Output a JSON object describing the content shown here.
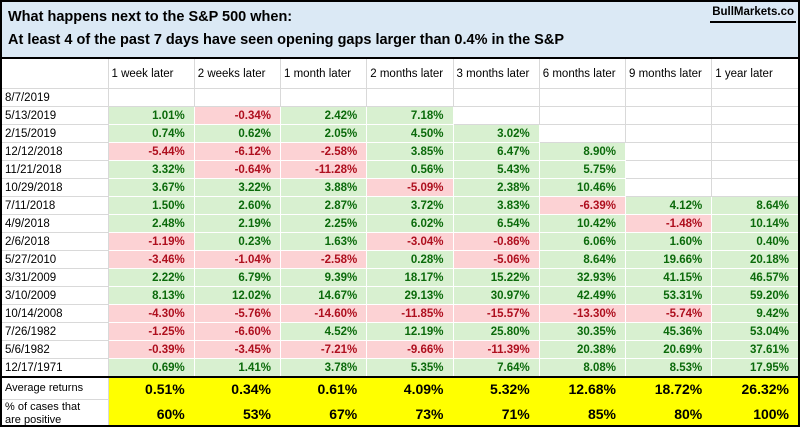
{
  "header": {
    "title_line1": "What happens next to the S&P 500 when:",
    "title_line2": "At least 4 of the past 7 days have seen opening gaps larger than 0.4% in the S&P",
    "brand": "BullMarkets.co"
  },
  "colors": {
    "title_bg": "#dbe9f5",
    "positive_bg": "#d8f0d0",
    "positive_text": "#0b6a0b",
    "negative_bg": "#fcd2d4",
    "negative_text": "#ae0f1e",
    "summary_bg": "#ffff00",
    "gridline": "#d9d9d9"
  },
  "chart_data": {
    "type": "table",
    "title": "What happens next to the S&P 500 when: At least 4 of the past 7 days have seen opening gaps larger than 0.4% in the S&P",
    "columns": [
      "1 week later",
      "2 weeks later",
      "1 month later",
      "2 months later",
      "3 months later",
      "6 months later",
      "9 months later",
      "1 year later"
    ],
    "rows": [
      {
        "date": "8/7/2019",
        "values": [
          null,
          null,
          null,
          null,
          null,
          null,
          null,
          null
        ]
      },
      {
        "date": "5/13/2019",
        "values": [
          "1.01%",
          "-0.34%",
          "2.42%",
          "7.18%",
          null,
          null,
          null,
          null
        ]
      },
      {
        "date": "2/15/2019",
        "values": [
          "0.74%",
          "0.62%",
          "2.05%",
          "4.50%",
          "3.02%",
          null,
          null,
          null
        ]
      },
      {
        "date": "12/12/2018",
        "values": [
          "-5.44%",
          "-6.12%",
          "-2.58%",
          "3.85%",
          "6.47%",
          "8.90%",
          null,
          null
        ]
      },
      {
        "date": "11/21/2018",
        "values": [
          "3.32%",
          "-0.64%",
          "-11.28%",
          "0.56%",
          "5.43%",
          "5.75%",
          null,
          null
        ]
      },
      {
        "date": "10/29/2018",
        "values": [
          "3.67%",
          "3.22%",
          "3.88%",
          "-5.09%",
          "2.38%",
          "10.46%",
          null,
          null
        ]
      },
      {
        "date": "7/11/2018",
        "values": [
          "1.50%",
          "2.60%",
          "2.87%",
          "3.72%",
          "3.83%",
          "-6.39%",
          "4.12%",
          "8.64%"
        ]
      },
      {
        "date": "4/9/2018",
        "values": [
          "2.48%",
          "2.19%",
          "2.25%",
          "6.02%",
          "6.54%",
          "10.42%",
          "-1.48%",
          "10.14%"
        ]
      },
      {
        "date": "2/6/2018",
        "values": [
          "-1.19%",
          "0.23%",
          "1.63%",
          "-3.04%",
          "-0.86%",
          "6.06%",
          "1.60%",
          "0.40%"
        ]
      },
      {
        "date": "5/27/2010",
        "values": [
          "-3.46%",
          "-1.04%",
          "-2.58%",
          "0.28%",
          "-5.06%",
          "8.64%",
          "19.66%",
          "20.18%"
        ]
      },
      {
        "date": "3/31/2009",
        "values": [
          "2.22%",
          "6.79%",
          "9.39%",
          "18.17%",
          "15.22%",
          "32.93%",
          "41.15%",
          "46.57%"
        ]
      },
      {
        "date": "3/10/2009",
        "values": [
          "8.13%",
          "12.02%",
          "14.67%",
          "29.13%",
          "30.97%",
          "42.49%",
          "53.31%",
          "59.20%"
        ]
      },
      {
        "date": "10/14/2008",
        "values": [
          "-4.30%",
          "-5.76%",
          "-14.60%",
          "-11.85%",
          "-15.57%",
          "-13.30%",
          "-5.74%",
          "9.42%"
        ]
      },
      {
        "date": "7/26/1982",
        "values": [
          "-1.25%",
          "-6.60%",
          "4.52%",
          "12.19%",
          "25.80%",
          "30.35%",
          "45.36%",
          "53.04%"
        ]
      },
      {
        "date": "5/6/1982",
        "values": [
          "-0.39%",
          "-3.45%",
          "-7.21%",
          "-9.66%",
          "-11.39%",
          "20.38%",
          "20.69%",
          "37.61%"
        ]
      },
      {
        "date": "12/17/1971",
        "values": [
          "0.69%",
          "1.41%",
          "3.78%",
          "5.35%",
          "7.64%",
          "8.08%",
          "8.53%",
          "17.95%"
        ]
      }
    ],
    "summary": {
      "average_label": "Average returns",
      "average_values": [
        "0.51%",
        "0.34%",
        "0.61%",
        "4.09%",
        "5.32%",
        "12.68%",
        "18.72%",
        "26.32%"
      ],
      "percent_positive_label_lines": [
        "% of cases that",
        "are positive"
      ],
      "percent_positive_values": [
        "60%",
        "53%",
        "67%",
        "73%",
        "71%",
        "85%",
        "80%",
        "100%"
      ]
    }
  }
}
